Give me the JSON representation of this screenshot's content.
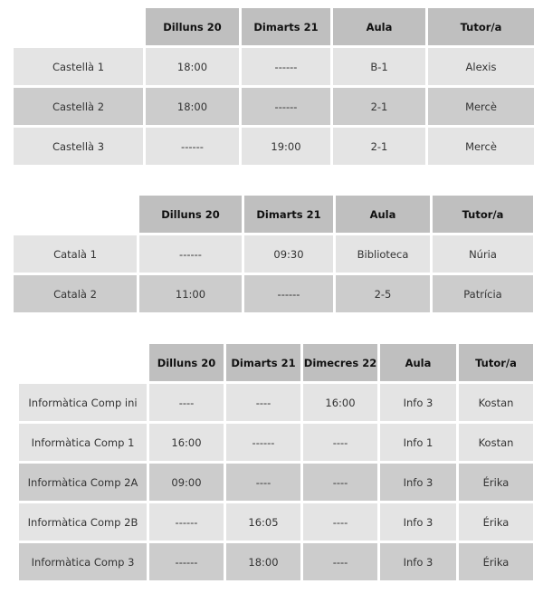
{
  "colors": {
    "header": "#bfbfbf",
    "row_light": "#e4e4e4",
    "row_dark": "#cccccc"
  },
  "tables": [
    {
      "name": "castella",
      "headers": [
        "Dilluns 20",
        "Dimarts 21",
        "Aula",
        "Tutor/a"
      ],
      "rows": [
        {
          "shade": "light",
          "cells": [
            "Castellà 1",
            "18:00",
            "------",
            "B-1",
            "Alexis"
          ]
        },
        {
          "shade": "dark",
          "cells": [
            "Castellà 2",
            "18:00",
            "------",
            "2-1",
            "Mercè"
          ]
        },
        {
          "shade": "light",
          "cells": [
            "Castellà 3",
            "------",
            "19:00",
            "2-1",
            "Mercè"
          ]
        }
      ]
    },
    {
      "name": "catala",
      "headers": [
        "Dilluns 20",
        "Dimarts 21",
        "Aula",
        "Tutor/a"
      ],
      "rows": [
        {
          "shade": "light",
          "cells": [
            "Català 1",
            "------",
            "09:30",
            "Biblioteca",
            "Núria"
          ]
        },
        {
          "shade": "dark",
          "cells": [
            "Català 2",
            "11:00",
            "------",
            "2-5",
            "Patrícia"
          ]
        }
      ]
    },
    {
      "name": "informatica",
      "headers": [
        "Dilluns 20",
        "Dimarts 21",
        "Dimecres 22",
        "Aula",
        "Tutor/a"
      ],
      "rows": [
        {
          "shade": "light",
          "cells": [
            "Informàtica Comp ini",
            "----",
            "----",
            "16:00",
            "Info 3",
            "Kostan"
          ]
        },
        {
          "shade": "light",
          "cells": [
            "Informàtica Comp 1",
            "16:00",
            "------",
            "----",
            "Info 1",
            "Kostan"
          ]
        },
        {
          "shade": "dark",
          "cells": [
            "Informàtica Comp 2A",
            "09:00",
            "----",
            "----",
            "Info 3",
            "Érika"
          ]
        },
        {
          "shade": "light",
          "cells": [
            "Informàtica Comp 2B",
            "------",
            "16:05",
            "----",
            "Info 3",
            "Érika"
          ]
        },
        {
          "shade": "dark",
          "cells": [
            "Informàtica Comp 3",
            "------",
            "18:00",
            "----",
            "Info 3",
            "Érika"
          ]
        }
      ]
    }
  ]
}
